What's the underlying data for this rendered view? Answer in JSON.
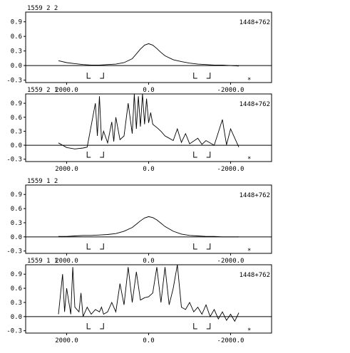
{
  "chart_data": [
    {
      "type": "line",
      "header": "1559  2  2",
      "object": "1448+762",
      "corner_mark": "*",
      "xlim": [
        3000,
        -3000
      ],
      "ylim": [
        -0.35,
        1.1
      ],
      "x_ticks": [
        2000,
        0,
        -2000
      ],
      "x_tick_labels": [
        "2000.0",
        "0.0",
        "-2000.0"
      ],
      "y_ticks": [
        0.9,
        0.6,
        0.3,
        0.0,
        -0.3
      ],
      "y_tick_labels": [
        "0.9",
        "0.6",
        "0.3",
        "0.0",
        "-0.3"
      ],
      "masked_ranges": [
        [
          1500,
          1100
        ],
        [
          -1100,
          -1500
        ]
      ],
      "series": [
        {
          "x": [
            2200,
            2000,
            1800,
            1600,
            1400,
            1200,
            1000,
            800,
            600,
            400,
            300,
            200,
            100,
            0,
            -100,
            -200,
            -300,
            -400,
            -600,
            -800,
            -1000,
            -1200,
            -1400,
            -1600,
            -1800,
            -2000,
            -2200
          ],
          "values": [
            0.1,
            0.06,
            0.04,
            0.02,
            0.01,
            0.01,
            0.02,
            0.03,
            0.06,
            0.14,
            0.24,
            0.34,
            0.42,
            0.45,
            0.42,
            0.35,
            0.27,
            0.2,
            0.12,
            0.08,
            0.05,
            0.03,
            0.02,
            0.01,
            0.01,
            0.0,
            -0.01
          ]
        }
      ]
    },
    {
      "type": "line",
      "header": "1559  2  1",
      "object": "1448+762",
      "corner_mark": "*",
      "xlim": [
        3000,
        -3000
      ],
      "ylim": [
        -0.35,
        1.1
      ],
      "x_ticks": [
        2000,
        0,
        -2000
      ],
      "x_tick_labels": [
        "2000.0",
        "0.0",
        "-2000.0"
      ],
      "y_ticks": [
        0.9,
        0.6,
        0.3,
        0.0,
        -0.3
      ],
      "y_tick_labels": [
        "0.9",
        "0.6",
        "0.3",
        "0.0",
        "-0.3"
      ],
      "masked_ranges": [
        [
          1500,
          1100
        ],
        [
          -1100,
          -1500
        ]
      ],
      "series": [
        {
          "x": [
            2200,
            2000,
            1800,
            1600,
            1500,
            1300,
            1250,
            1200,
            1150,
            1100,
            1000,
            900,
            850,
            800,
            700,
            600,
            500,
            400,
            350,
            300,
            250,
            200,
            150,
            100,
            50,
            0,
            -50,
            -100,
            -200,
            -300,
            -400,
            -500,
            -600,
            -700,
            -800,
            -900,
            -1000,
            -1200,
            -1300,
            -1400,
            -1600,
            -1800,
            -1900,
            -2000,
            -2200
          ],
          "values": [
            0.05,
            -0.05,
            -0.08,
            -0.06,
            -0.04,
            0.9,
            0.2,
            1.05,
            0.1,
            0.3,
            0.05,
            0.5,
            0.08,
            0.6,
            0.12,
            0.2,
            0.9,
            0.25,
            1.1,
            0.35,
            1.05,
            0.4,
            1.1,
            0.45,
            1.0,
            0.48,
            0.7,
            0.45,
            0.38,
            0.3,
            0.2,
            0.15,
            0.1,
            0.35,
            0.06,
            0.25,
            0.03,
            0.15,
            0.02,
            0.1,
            0.0,
            0.55,
            0.01,
            0.35,
            -0.04
          ]
        }
      ]
    },
    {
      "type": "line",
      "header": "1559  1  2",
      "object": "1448+762",
      "corner_mark": "*",
      "xlim": [
        3000,
        -3000
      ],
      "ylim": [
        -0.35,
        1.1
      ],
      "x_ticks": [
        2000,
        0,
        -2000
      ],
      "x_tick_labels": [
        "2000.0",
        "0.0",
        "-2000.0"
      ],
      "y_ticks": [
        0.9,
        0.6,
        0.3,
        0.0,
        -0.3
      ],
      "y_tick_labels": [
        "0.9",
        "0.6",
        "0.3",
        "0.0",
        "-0.3"
      ],
      "masked_ranges": [
        [
          1500,
          1100
        ],
        [
          -1100,
          -1500
        ]
      ],
      "series": [
        {
          "x": [
            2200,
            2000,
            1800,
            1600,
            1400,
            1200,
            1000,
            800,
            600,
            400,
            300,
            200,
            100,
            0,
            -100,
            -200,
            -300,
            -400,
            -600,
            -800,
            -1000,
            -1200,
            -1400,
            -1600,
            -1800,
            -2000,
            -2200
          ],
          "values": [
            0.01,
            0.01,
            0.02,
            0.03,
            0.03,
            0.04,
            0.05,
            0.07,
            0.12,
            0.2,
            0.27,
            0.34,
            0.4,
            0.43,
            0.41,
            0.36,
            0.29,
            0.22,
            0.12,
            0.06,
            0.03,
            0.02,
            0.01,
            0.01,
            0.0,
            0.0,
            0.0
          ]
        }
      ]
    },
    {
      "type": "line",
      "header": "1559  1  1",
      "object": "1448+762",
      "corner_mark": "*",
      "xlim": [
        3000,
        -3000
      ],
      "ylim": [
        -0.35,
        1.1
      ],
      "x_ticks": [
        2000,
        0,
        -2000
      ],
      "x_tick_labels": [
        "2000.0",
        "0.0",
        "-2000.0"
      ],
      "y_ticks": [
        0.9,
        0.6,
        0.3,
        0.0,
        -0.3
      ],
      "y_tick_labels": [
        "0.9",
        "0.6",
        "0.3",
        "0.0",
        "-0.3"
      ],
      "masked_ranges": [
        [
          1500,
          1100
        ],
        [
          -1100,
          -1500
        ]
      ],
      "series": [
        {
          "x": [
            2200,
            2100,
            2050,
            2000,
            1900,
            1850,
            1800,
            1700,
            1650,
            1600,
            1500,
            1400,
            1300,
            1200,
            1150,
            1100,
            1000,
            900,
            800,
            700,
            600,
            500,
            400,
            300,
            200,
            100,
            0,
            -100,
            -200,
            -300,
            -400,
            -500,
            -600,
            -700,
            -800,
            -900,
            -1000,
            -1100,
            -1200,
            -1300,
            -1400,
            -1500,
            -1600,
            -1700,
            -1800,
            -1900,
            -2000,
            -2100,
            -2200
          ],
          "values": [
            0.05,
            0.9,
            0.1,
            0.6,
            0.05,
            1.05,
            0.2,
            0.1,
            0.5,
            0.0,
            0.2,
            0.05,
            0.15,
            0.1,
            0.2,
            0.05,
            0.1,
            0.3,
            0.1,
            0.7,
            0.25,
            1.05,
            0.3,
            0.95,
            0.35,
            0.4,
            0.42,
            0.5,
            1.05,
            0.3,
            1.05,
            0.25,
            0.6,
            1.1,
            0.2,
            0.15,
            0.3,
            0.1,
            0.2,
            0.05,
            0.25,
            0.0,
            0.15,
            -0.05,
            0.1,
            -0.08,
            0.05,
            -0.1,
            0.08
          ]
        }
      ]
    }
  ]
}
